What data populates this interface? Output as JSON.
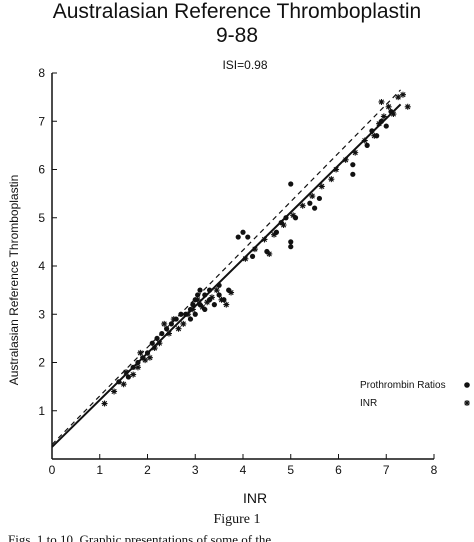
{
  "chart_data": {
    "type": "scatter",
    "title": "Australasian Reference Thromboplastin",
    "subtitle": "9-88",
    "annotation": "ISI=0.98",
    "xlabel": "INR",
    "ylabel": "Australasian Reference Thromboplastin",
    "xlim": [
      0,
      8
    ],
    "ylim": [
      0,
      8
    ],
    "xticks": [
      "0",
      "1",
      "2",
      "3",
      "4",
      "5",
      "6",
      "7",
      "8"
    ],
    "yticks": [
      "0",
      "1",
      "2",
      "3",
      "4",
      "5",
      "6",
      "7",
      "8"
    ],
    "grid": false,
    "legend_position": "right",
    "series": [
      {
        "name": "Prothrombin Ratios",
        "marker": "dot",
        "points": [
          [
            1.4,
            1.6
          ],
          [
            1.6,
            1.7
          ],
          [
            1.7,
            1.9
          ],
          [
            1.8,
            2.0
          ],
          [
            1.9,
            2.1
          ],
          [
            2.0,
            2.2
          ],
          [
            2.1,
            2.4
          ],
          [
            2.2,
            2.5
          ],
          [
            2.3,
            2.6
          ],
          [
            2.4,
            2.7
          ],
          [
            2.5,
            2.8
          ],
          [
            2.6,
            2.9
          ],
          [
            2.7,
            3.0
          ],
          [
            2.8,
            3.0
          ],
          [
            2.9,
            3.1
          ],
          [
            2.95,
            3.2
          ],
          [
            3.0,
            3.3
          ],
          [
            3.05,
            3.4
          ],
          [
            3.1,
            3.5
          ],
          [
            3.2,
            3.4
          ],
          [
            3.3,
            3.3
          ],
          [
            3.4,
            3.2
          ],
          [
            3.5,
            3.4
          ],
          [
            2.9,
            2.9
          ],
          [
            3.0,
            3.0
          ],
          [
            3.1,
            3.2
          ],
          [
            3.2,
            3.1
          ],
          [
            3.3,
            3.5
          ],
          [
            3.5,
            3.6
          ],
          [
            3.6,
            3.3
          ],
          [
            3.7,
            3.5
          ],
          [
            3.9,
            4.6
          ],
          [
            4.0,
            4.7
          ],
          [
            4.1,
            4.6
          ],
          [
            4.2,
            4.2
          ],
          [
            4.5,
            4.3
          ],
          [
            4.7,
            4.7
          ],
          [
            4.8,
            4.9
          ],
          [
            4.9,
            5.0
          ],
          [
            5.0,
            4.5
          ],
          [
            5.0,
            4.4
          ],
          [
            5.1,
            5.0
          ],
          [
            5.4,
            5.3
          ],
          [
            5.5,
            5.2
          ],
          [
            5.6,
            5.4
          ],
          [
            5.0,
            5.7
          ],
          [
            6.3,
            5.9
          ],
          [
            6.3,
            6.1
          ],
          [
            6.6,
            6.5
          ],
          [
            6.7,
            6.8
          ],
          [
            6.8,
            6.7
          ],
          [
            6.9,
            7.0
          ],
          [
            7.0,
            6.9
          ],
          [
            7.1,
            7.2
          ]
        ]
      },
      {
        "name": "INR",
        "marker": "star",
        "points": [
          [
            1.1,
            1.15
          ],
          [
            1.3,
            1.4
          ],
          [
            1.5,
            1.55
          ],
          [
            1.55,
            1.8
          ],
          [
            1.7,
            1.75
          ],
          [
            1.8,
            1.9
          ],
          [
            1.85,
            2.2
          ],
          [
            1.95,
            2.05
          ],
          [
            2.05,
            2.1
          ],
          [
            2.15,
            2.3
          ],
          [
            2.25,
            2.4
          ],
          [
            2.35,
            2.8
          ],
          [
            2.45,
            2.6
          ],
          [
            2.55,
            2.9
          ],
          [
            2.65,
            2.7
          ],
          [
            2.75,
            2.8
          ],
          [
            2.85,
            3.0
          ],
          [
            2.95,
            3.1
          ],
          [
            3.05,
            3.3
          ],
          [
            3.15,
            3.15
          ],
          [
            3.25,
            3.25
          ],
          [
            3.35,
            3.35
          ],
          [
            3.45,
            3.5
          ],
          [
            3.55,
            3.3
          ],
          [
            3.65,
            3.2
          ],
          [
            3.75,
            3.45
          ],
          [
            4.05,
            4.15
          ],
          [
            4.25,
            4.35
          ],
          [
            4.45,
            4.55
          ],
          [
            4.55,
            4.25
          ],
          [
            4.65,
            4.65
          ],
          [
            4.85,
            4.85
          ],
          [
            5.05,
            5.05
          ],
          [
            5.25,
            5.25
          ],
          [
            5.45,
            5.45
          ],
          [
            5.65,
            5.65
          ],
          [
            5.85,
            5.8
          ],
          [
            5.95,
            6.0
          ],
          [
            6.15,
            6.2
          ],
          [
            6.35,
            6.35
          ],
          [
            6.55,
            6.6
          ],
          [
            6.75,
            6.7
          ],
          [
            6.85,
            6.95
          ],
          [
            6.95,
            7.1
          ],
          [
            7.05,
            7.3
          ],
          [
            7.15,
            7.15
          ],
          [
            7.25,
            7.5
          ],
          [
            7.35,
            7.55
          ],
          [
            7.45,
            7.3
          ],
          [
            6.9,
            7.4
          ]
        ]
      }
    ],
    "fit_lines": [
      {
        "style": "solid",
        "from": [
          0,
          0.25
        ],
        "to": [
          7.3,
          7.35
        ]
      },
      {
        "style": "dashed",
        "from": [
          0,
          0.3
        ],
        "to": [
          7.3,
          7.65
        ]
      }
    ]
  },
  "caption": "Figure 1",
  "caption_text": "Figs. 1 to 10. Graphic presentations of some of the"
}
